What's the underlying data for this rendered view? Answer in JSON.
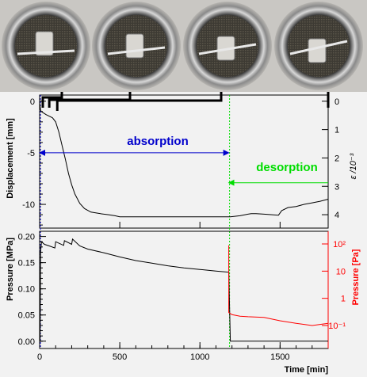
{
  "colors": {
    "panel_bg": "#f2f2f2",
    "strip_bg": "#c9c7c3",
    "displacement": "#000000",
    "pressure_mpa": "#000000",
    "pressure_pa": "#ff0000",
    "absorption": "#0000cc",
    "desorption": "#00dd00"
  },
  "photos": [
    {
      "name": "specimen-photo-1"
    },
    {
      "name": "specimen-photo-2"
    },
    {
      "name": "specimen-photo-3"
    },
    {
      "name": "specimen-photo-4"
    }
  ],
  "chart_data": [
    {
      "type": "line",
      "ylabel": "Displacement [mm]",
      "ylabel_right": "ε /10⁻³",
      "xlim": [
        0,
        1800
      ],
      "ylim": [
        -12.3,
        0.6
      ],
      "yticks": [
        0,
        -5,
        -10
      ],
      "yticks_right": [
        "0",
        "1",
        "2",
        "3",
        "4"
      ],
      "yticks_right_mm": [
        0,
        -2.75,
        -5.5,
        -8.25,
        -11.0
      ],
      "series": [
        {
          "x": [
            0,
            5,
            10,
            20,
            40,
            60,
            80,
            100,
            120,
            140,
            160,
            180,
            200,
            220,
            250,
            280,
            320,
            380,
            430,
            470,
            500,
            600,
            800,
            1000,
            1150,
            1190,
            1250,
            1300,
            1320,
            1350,
            1400,
            1450,
            1490,
            1510,
            1550,
            1600,
            1650,
            1700,
            1750,
            1800
          ],
          "y": [
            0,
            -0.8,
            -1.0,
            -1.1,
            -1.3,
            -1.45,
            -1.6,
            -2.0,
            -3.0,
            -4.3,
            -5.6,
            -7.0,
            -8.1,
            -9.0,
            -9.9,
            -10.4,
            -10.75,
            -10.9,
            -11.0,
            -11.1,
            -11.2,
            -11.2,
            -11.2,
            -11.2,
            -11.2,
            -11.2,
            -11.1,
            -10.95,
            -10.9,
            -10.9,
            -10.95,
            -11.0,
            -11.05,
            -10.6,
            -10.3,
            -10.2,
            -10.0,
            -9.85,
            -9.7,
            -9.5
          ]
        }
      ],
      "annotations": [
        {
          "label": "absorption",
          "from": 0,
          "to": 1180,
          "y": -5
        },
        {
          "label": "desorption",
          "from": 1800,
          "to": 1180,
          "y": -7.9
        }
      ],
      "marker_lines": [
        {
          "x": 0,
          "color": "#0000cc"
        },
        {
          "x": 1180,
          "color": "#00dd00"
        }
      ],
      "photo_brackets_at_time": [
        10,
        60,
        110,
        1800
      ]
    },
    {
      "type": "line",
      "xlabel": "Time [min]",
      "ylabel": "Pressure [MPa]",
      "ylabel_right": "Pressure [Pa]",
      "right_axis_scale": "log",
      "xlim": [
        0,
        1800
      ],
      "xticks": [
        0,
        500,
        1000,
        1500
      ],
      "ylim": [
        -0.014,
        0.21
      ],
      "yticks": [
        "0.20",
        "0.15",
        "0.10",
        "0.05",
        "0.00"
      ],
      "yticks_values": [
        0.2,
        0.15,
        0.1,
        0.05,
        0.0
      ],
      "yticks_right": [
        "10²",
        "10",
        "1",
        "10⁻¹"
      ],
      "series": [
        {
          "name": "Pressure [MPa]",
          "x": [
            0,
            3,
            6,
            12,
            30,
            60,
            95,
            100,
            150,
            155,
            200,
            205,
            250,
            300,
            400,
            500,
            600,
            700,
            800,
            900,
            1000,
            1100,
            1170,
            1180,
            1190,
            1800
          ],
          "y": [
            0.0,
            0.0,
            0.17,
            0.19,
            0.185,
            0.182,
            0.178,
            0.19,
            0.183,
            0.192,
            0.185,
            0.195,
            0.182,
            0.176,
            0.169,
            0.161,
            0.154,
            0.149,
            0.144,
            0.14,
            0.137,
            0.134,
            0.132,
            0.132,
            0.0,
            0.0
          ]
        },
        {
          "name": "Pressure [Pa]",
          "x": [
            1180,
            1180,
            1200,
            1250,
            1300,
            1400,
            1500,
            1600,
            1700,
            1800
          ],
          "y": [
            90,
            0.3,
            0.25,
            0.22,
            0.21,
            0.2,
            0.15,
            0.12,
            0.1,
            0.12
          ]
        }
      ]
    }
  ],
  "labels": {
    "y_displacement": "Displacement [mm]",
    "y_strain": "ε /10⁻³",
    "y_pressure_mpa": "Pressure [MPa]",
    "y_pressure_pa": "Pressure [Pa]",
    "x_time": "Time [min]",
    "absorption": "absorption",
    "desorption": "desorption"
  }
}
